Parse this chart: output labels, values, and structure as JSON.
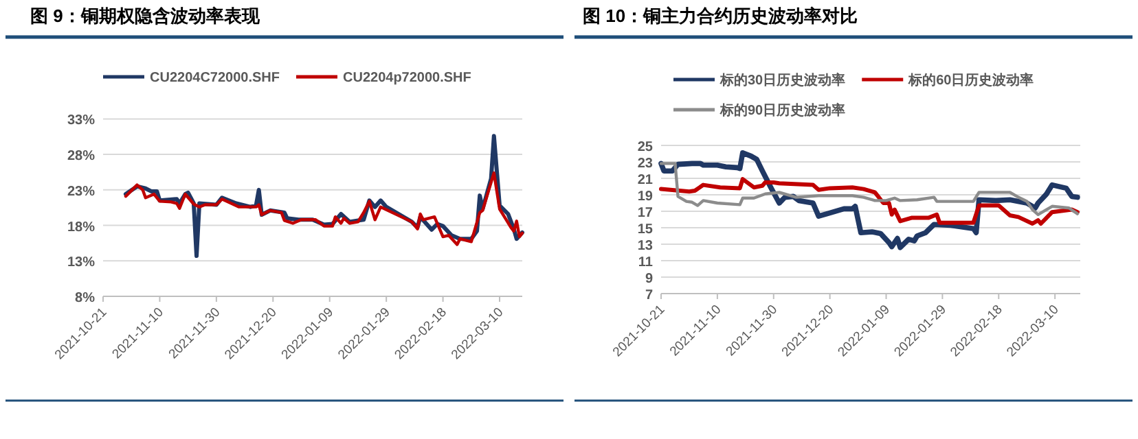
{
  "chart_data": [
    {
      "type": "line",
      "title": "图 9：铜期权隐含波动率表现",
      "legend": "top",
      "grid": "y",
      "xlim": [
        "2021-10-21",
        "2022-03-18"
      ],
      "xticks": [
        "2021-10-21",
        "2021-11-10",
        "2021-11-30",
        "2021-12-20",
        "2022-01-09",
        "2022-01-29",
        "2022-02-18",
        "2022-03-10"
      ],
      "ylim": [
        8,
        33
      ],
      "yticks": [
        {
          "value": 8,
          "label": "8%"
        },
        {
          "value": 13,
          "label": "13%"
        },
        {
          "value": 18,
          "label": "18%"
        },
        {
          "value": 23,
          "label": "23%"
        },
        {
          "value": 28,
          "label": "28%"
        },
        {
          "value": 33,
          "label": "33%"
        }
      ],
      "series": [
        {
          "name": "CU2204C72000.SHF",
          "color": "#203864",
          "x": [
            "2021-10-29",
            "2021-11-02",
            "2021-11-05",
            "2021-11-07",
            "2021-11-09",
            "2021-11-10",
            "2021-11-16",
            "2021-11-17",
            "2021-11-19",
            "2021-11-20",
            "2021-11-22",
            "2021-11-23",
            "2021-11-24",
            "2021-11-30",
            "2021-12-02",
            "2021-12-07",
            "2021-12-12",
            "2021-12-14",
            "2021-12-15",
            "2021-12-16",
            "2021-12-19",
            "2021-12-24",
            "2021-12-25",
            "2021-12-29",
            "2022-01-03",
            "2022-01-07",
            "2022-01-10",
            "2022-01-13",
            "2022-01-16",
            "2022-01-21",
            "2022-01-23",
            "2022-01-25",
            "2022-01-27",
            "2022-01-29",
            "2022-02-07",
            "2022-02-09",
            "2022-02-10",
            "2022-02-14",
            "2022-02-16",
            "2022-02-18",
            "2022-02-21",
            "2022-02-24",
            "2022-02-28",
            "2022-03-02",
            "2022-03-03",
            "2022-03-04",
            "2022-03-07",
            "2022-03-08",
            "2022-03-10",
            "2022-03-13",
            "2022-03-15",
            "2022-03-16",
            "2022-03-18"
          ],
          "values": [
            22.4,
            23.5,
            23.2,
            22.8,
            22.8,
            21.5,
            21.7,
            21.1,
            22.4,
            22.6,
            21.1,
            13.7,
            21.1,
            20.9,
            21.9,
            21.1,
            20.6,
            20.8,
            23.0,
            19.5,
            20.1,
            19.8,
            19.0,
            18.8,
            18.8,
            18.1,
            18.2,
            19.6,
            18.5,
            18.8,
            21.5,
            20.6,
            21.5,
            20.6,
            18.5,
            17.7,
            19.2,
            17.4,
            18.2,
            17.9,
            16.6,
            16.1,
            16.1,
            17.2,
            22.2,
            20.3,
            24.6,
            30.6,
            20.8,
            19.6,
            17.5,
            16.1,
            17.0
          ]
        },
        {
          "name": "CU2204p72000.SHF",
          "color": "#c00000",
          "x": [
            "2021-10-29",
            "2021-11-02",
            "2021-11-04",
            "2021-11-05",
            "2021-11-08",
            "2021-11-10",
            "2021-11-14",
            "2021-11-16",
            "2021-11-17",
            "2021-11-19",
            "2021-11-22",
            "2021-11-24",
            "2021-11-26",
            "2021-11-30",
            "2021-12-02",
            "2021-12-08",
            "2021-12-14",
            "2021-12-15",
            "2021-12-16",
            "2021-12-19",
            "2021-12-23",
            "2021-12-24",
            "2021-12-27",
            "2021-12-30",
            "2022-01-04",
            "2022-01-07",
            "2022-01-10",
            "2022-01-11",
            "2022-01-13",
            "2022-01-14",
            "2022-01-16",
            "2022-01-19",
            "2022-01-21",
            "2022-01-23",
            "2022-01-25",
            "2022-01-27",
            "2022-02-07",
            "2022-02-09",
            "2022-02-10",
            "2022-02-11",
            "2022-02-15",
            "2022-02-18",
            "2022-02-20",
            "2022-02-23",
            "2022-02-24",
            "2022-02-28",
            "2022-03-03",
            "2022-03-04",
            "2022-03-08",
            "2022-03-10",
            "2022-03-12",
            "2022-03-14",
            "2022-03-15",
            "2022-03-16",
            "2022-03-17",
            "2022-03-18"
          ],
          "values": [
            22.1,
            23.7,
            23.0,
            21.9,
            22.4,
            21.4,
            21.3,
            21.1,
            20.4,
            22.4,
            21.0,
            20.6,
            20.9,
            20.9,
            21.7,
            20.6,
            20.6,
            20.9,
            19.5,
            20.1,
            19.8,
            18.7,
            18.3,
            18.8,
            18.8,
            17.9,
            17.9,
            19.2,
            18.3,
            19.0,
            18.3,
            18.5,
            19.8,
            21.4,
            18.8,
            20.6,
            18.5,
            17.5,
            19.6,
            18.8,
            19.2,
            16.4,
            16.6,
            15.3,
            16.1,
            15.7,
            19.8,
            20.1,
            25.4,
            20.3,
            19.0,
            17.7,
            17.2,
            18.6,
            16.4,
            16.9
          ]
        }
      ]
    },
    {
      "type": "line",
      "title": "图 10：铜主力合约历史波动率对比",
      "legend": "top",
      "grid": "y",
      "xlim": [
        "2021-10-21",
        "2022-03-19"
      ],
      "xticks": [
        "2021-10-21",
        "2021-11-10",
        "2021-11-30",
        "2021-12-20",
        "2022-01-09",
        "2022-01-29",
        "2022-02-18",
        "2022-03-10"
      ],
      "ylim": [
        7,
        25
      ],
      "yticks": [
        7,
        9,
        11,
        13,
        15,
        17,
        19,
        21,
        23,
        25
      ],
      "series": [
        {
          "name": "标的30日历史波动率",
          "color": "#203864",
          "x": [
            "2021-10-21",
            "2021-10-22",
            "2021-10-25",
            "2021-10-27",
            "2021-11-01",
            "2021-11-04",
            "2021-11-05",
            "2021-11-10",
            "2021-11-13",
            "2021-11-17",
            "2021-11-18",
            "2021-11-19",
            "2021-11-22",
            "2021-11-24",
            "2021-11-26",
            "2021-11-29",
            "2021-12-02",
            "2021-12-04",
            "2021-12-07",
            "2021-12-09",
            "2021-12-14",
            "2021-12-16",
            "2021-12-19",
            "2021-12-25",
            "2021-12-28",
            "2021-12-29",
            "2021-12-31",
            "2022-01-04",
            "2022-01-07",
            "2022-01-10",
            "2022-01-11",
            "2022-01-13",
            "2022-01-14",
            "2022-01-17",
            "2022-01-19",
            "2022-01-20",
            "2022-01-23",
            "2022-01-26",
            "2022-02-01",
            "2022-02-09",
            "2022-02-10",
            "2022-02-11",
            "2022-02-17",
            "2022-02-22",
            "2022-02-28",
            "2022-03-03",
            "2022-03-04",
            "2022-03-07",
            "2022-03-09",
            "2022-03-14",
            "2022-03-16",
            "2022-03-18"
          ],
          "values": [
            22.8,
            21.9,
            21.9,
            22.7,
            22.8,
            22.8,
            22.6,
            22.6,
            22.4,
            22.3,
            22.2,
            24.1,
            23.7,
            23.3,
            21.9,
            19.9,
            18.0,
            18.7,
            18.8,
            18.3,
            18.0,
            16.4,
            16.7,
            17.3,
            17.3,
            17.6,
            14.4,
            14.5,
            14.3,
            13.2,
            12.7,
            13.7,
            12.6,
            13.6,
            13.4,
            14.0,
            14.4,
            15.4,
            15.3,
            14.9,
            14.4,
            18.4,
            18.3,
            18.4,
            18.0,
            17.4,
            18.0,
            19.1,
            20.2,
            19.8,
            18.8,
            18.7
          ]
        },
        {
          "name": "标的60日历史波动率",
          "color": "#c00000",
          "x": [
            "2021-10-21",
            "2021-10-31",
            "2021-11-02",
            "2021-11-05",
            "2021-11-11",
            "2021-11-18",
            "2021-11-19",
            "2021-11-23",
            "2021-11-26",
            "2021-11-27",
            "2021-11-30",
            "2021-12-02",
            "2021-12-14",
            "2021-12-16",
            "2021-12-20",
            "2021-12-28",
            "2022-01-01",
            "2022-01-05",
            "2022-01-08",
            "2022-01-10",
            "2022-01-11",
            "2022-01-12",
            "2022-01-14",
            "2022-01-18",
            "2022-01-24",
            "2022-01-27",
            "2022-01-28",
            "2022-02-09",
            "2022-02-11",
            "2022-02-18",
            "2022-02-22",
            "2022-02-25",
            "2022-03-02",
            "2022-03-04",
            "2022-03-05",
            "2022-03-09",
            "2022-03-16",
            "2022-03-18"
          ],
          "values": [
            19.7,
            19.4,
            19.5,
            20.2,
            19.9,
            19.8,
            20.9,
            19.9,
            20.1,
            20.5,
            20.5,
            20.4,
            20.2,
            19.6,
            19.8,
            19.9,
            19.7,
            19.3,
            18.0,
            18.0,
            16.6,
            17.2,
            15.8,
            16.2,
            16.2,
            16.6,
            15.6,
            15.6,
            17.7,
            17.7,
            16.5,
            16.3,
            15.5,
            15.9,
            15.5,
            16.9,
            17.2,
            16.9
          ]
        },
        {
          "name": "标的90日历史波动率",
          "color": "#8c8c8c",
          "x": [
            "2021-10-21",
            "2021-10-26",
            "2021-10-27",
            "2021-10-30",
            "2021-11-01",
            "2021-11-03",
            "2021-11-05",
            "2021-11-10",
            "2021-11-18",
            "2021-11-19",
            "2021-11-23",
            "2021-11-27",
            "2021-12-02",
            "2021-12-08",
            "2021-12-16",
            "2021-12-28",
            "2022-01-01",
            "2022-01-05",
            "2022-01-09",
            "2022-01-12",
            "2022-01-14",
            "2022-01-20",
            "2022-01-26",
            "2022-01-27",
            "2022-02-09",
            "2022-02-11",
            "2022-02-22",
            "2022-02-25",
            "2022-02-28",
            "2022-03-02",
            "2022-03-04",
            "2022-03-09",
            "2022-03-15",
            "2022-03-18"
          ],
          "values": [
            22.8,
            22.8,
            18.8,
            18.2,
            18.1,
            17.7,
            18.3,
            18.0,
            17.8,
            18.6,
            18.6,
            19.1,
            19.3,
            18.7,
            18.9,
            18.9,
            18.7,
            18.3,
            18.3,
            18.6,
            18.3,
            18.4,
            18.7,
            18.2,
            18.2,
            19.3,
            19.3,
            18.7,
            18.2,
            17.2,
            16.6,
            17.6,
            17.4,
            16.7
          ]
        }
      ]
    }
  ]
}
